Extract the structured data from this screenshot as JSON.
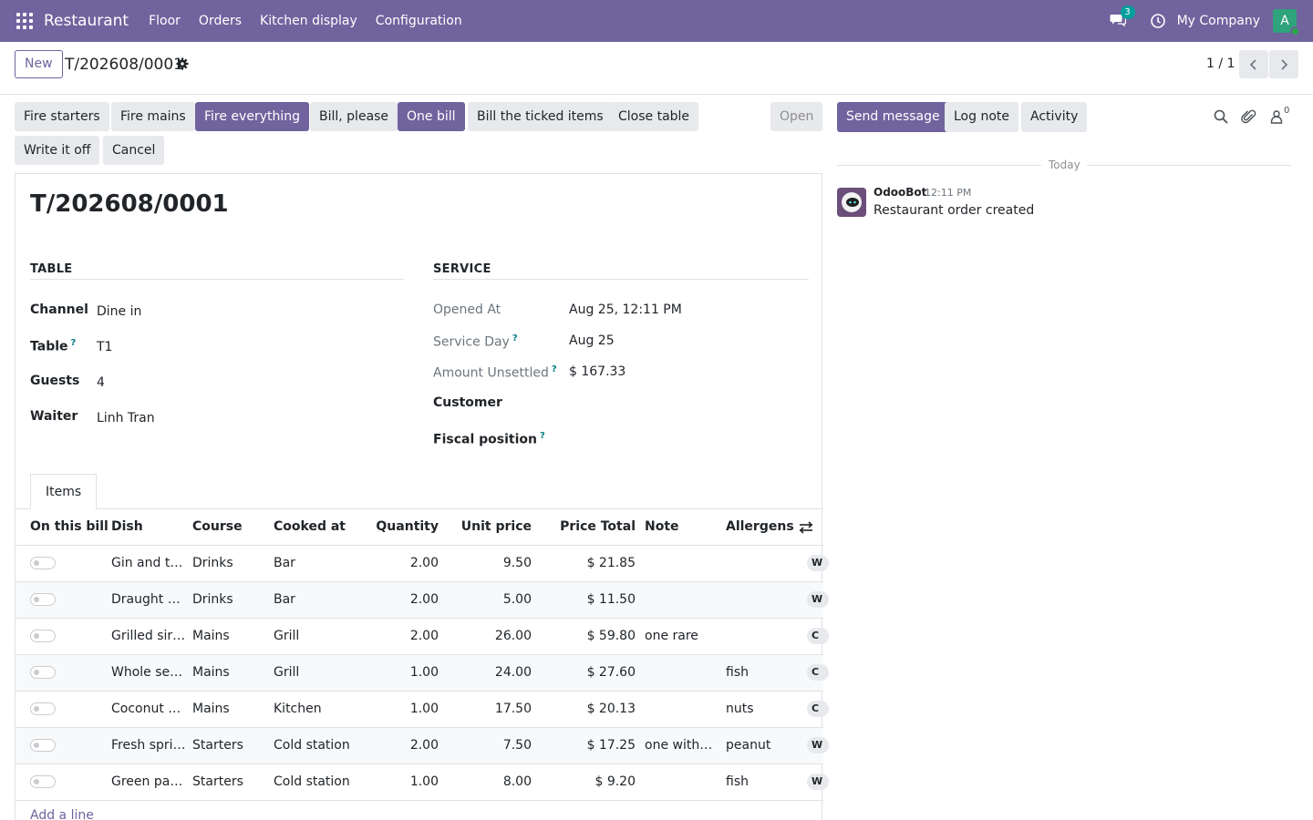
{
  "navbar": {
    "app_name": "Restaurant",
    "menu": [
      "Floor",
      "Orders",
      "Kitchen display",
      "Configuration"
    ],
    "chat_count": "3",
    "company": "My Company",
    "avatar_letter": "A",
    "accent": "#71639e"
  },
  "control_panel": {
    "new_label": "New",
    "record_name": "T/202608/0001",
    "pager": "1 / 1"
  },
  "actions": {
    "fire_starters": "Fire starters",
    "fire_mains": "Fire mains",
    "fire_everything": "Fire everything",
    "bill_please": "Bill, please",
    "one_bill": "One bill",
    "bill_ticked": "Bill the ticked items",
    "close_table": "Close table",
    "write_off": "Write it off",
    "cancel": "Cancel",
    "status": "Open"
  },
  "form": {
    "title": "T/202608/0001",
    "table_group": {
      "title": "TABLE",
      "channel_label": "Channel",
      "channel": "Dine in",
      "table_label": "Table",
      "table": "T1",
      "guests_label": "Guests",
      "guests": "4",
      "waiter_label": "Waiter",
      "waiter": "Linh Tran"
    },
    "service_group": {
      "title": "SERVICE",
      "opened_label": "Opened At",
      "opened": "Aug 25, 12:11 PM",
      "service_day_label": "Service Day",
      "service_day": "Aug 25",
      "unsettled_label": "Amount Unsettled",
      "unsettled": "$ 167.33",
      "customer_label": "Customer",
      "fiscal_label": "Fiscal position"
    },
    "help_mark": "?"
  },
  "items": {
    "tab_label": "Items",
    "columns": {
      "on_bill": "On this bill",
      "dish": "Dish",
      "course": "Course",
      "cooked_at": "Cooked at",
      "quantity": "Quantity",
      "unit_price": "Unit price",
      "price_total": "Price Total",
      "note": "Note",
      "allergens": "Allergens"
    },
    "rows": [
      {
        "dish": "Gin and tonic",
        "course": "Drinks",
        "cooked_at": "Bar",
        "qty": "2.00",
        "unit": "9.50",
        "total": "$ 21.85",
        "note": "",
        "allergens": "",
        "tag": "W"
      },
      {
        "dish": "Draught beer",
        "course": "Drinks",
        "cooked_at": "Bar",
        "qty": "2.00",
        "unit": "5.00",
        "total": "$ 11.50",
        "note": "",
        "allergens": "",
        "tag": "W"
      },
      {
        "dish": "Grilled sirloin",
        "course": "Mains",
        "cooked_at": "Grill",
        "qty": "2.00",
        "unit": "26.00",
        "total": "$ 59.80",
        "note": "one rare",
        "allergens": "",
        "tag": "C"
      },
      {
        "dish": "Whole sea bass",
        "course": "Mains",
        "cooked_at": "Grill",
        "qty": "1.00",
        "unit": "24.00",
        "total": "$ 27.60",
        "note": "",
        "allergens": "fish",
        "tag": "C"
      },
      {
        "dish": "Coconut curry",
        "course": "Mains",
        "cooked_at": "Kitchen",
        "qty": "1.00",
        "unit": "17.50",
        "total": "$ 20.13",
        "note": "",
        "allergens": "nuts",
        "tag": "C"
      },
      {
        "dish": "Fresh spring rolls",
        "course": "Starters",
        "cooked_at": "Cold station",
        "qty": "2.00",
        "unit": "7.50",
        "total": "$ 17.25",
        "note": "one without peanut",
        "allergens": "peanut",
        "tag": "W"
      },
      {
        "dish": "Green papaya salad",
        "course": "Starters",
        "cooked_at": "Cold station",
        "qty": "1.00",
        "unit": "8.00",
        "total": "$ 9.20",
        "note": "",
        "allergens": "fish",
        "tag": "W"
      }
    ],
    "add_line": "Add a line"
  },
  "chatter": {
    "send_message": "Send message",
    "log_note": "Log note",
    "activity": "Activity",
    "followers_count": "0",
    "date_sep": "Today",
    "message": {
      "author": "OdooBot",
      "time": "12:11 PM",
      "body": "Restaurant order created"
    }
  }
}
